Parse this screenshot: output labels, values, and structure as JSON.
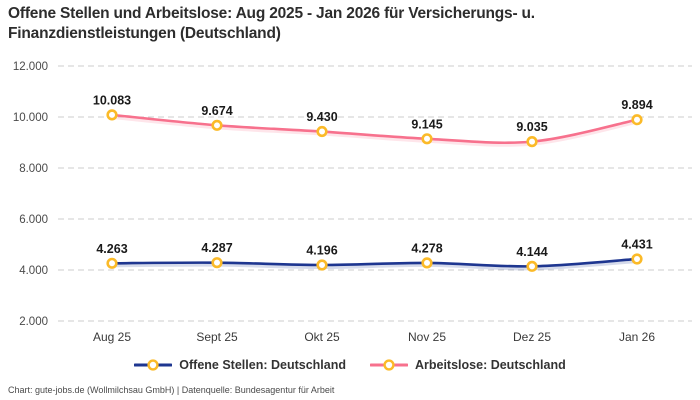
{
  "header": {
    "title_line1": "Offene Stellen und Arbeitslose: Aug 2025 - Jan 2026 für Versicherungs- u.",
    "title_line2": "Finanzdienstleistungen (Deutschland)"
  },
  "chart_data": {
    "type": "line",
    "title": "Offene Stellen und Arbeitslose: Aug 2025 - Jan 2026 für Versicherungs- u. Finanzdienstleistungen (Deutschland)",
    "categories": [
      "Aug 25",
      "Sept 25",
      "Okt 25",
      "Nov 25",
      "Dez 25",
      "Jan 26"
    ],
    "series": [
      {
        "name": "Offene Stellen: Deutschland",
        "color": "#1E3690",
        "values": [
          4263,
          4287,
          4196,
          4278,
          4144,
          4431
        ],
        "labels": [
          "4.263",
          "4.287",
          "4.196",
          "4.278",
          "4.144",
          "4.431"
        ]
      },
      {
        "name": "Arbeitslose: Deutschland",
        "color": "#F7718D",
        "values": [
          10083,
          9674,
          9430,
          9145,
          9035,
          9894
        ],
        "labels": [
          "10.083",
          "9.674",
          "9.430",
          "9.145",
          "9.035",
          "9.894"
        ]
      }
    ],
    "marker": {
      "fill": "#FFFFFF",
      "stroke": "#FBBA28"
    },
    "ylim": [
      2000,
      12000
    ],
    "yticks": [
      {
        "value": 12000,
        "label": "12.000"
      },
      {
        "value": 10000,
        "label": "10.000"
      },
      {
        "value": 8000,
        "label": "8.000"
      },
      {
        "value": 6000,
        "label": "6.000"
      },
      {
        "value": 4000,
        "label": "4.000"
      },
      {
        "value": 2000,
        "label": "2.000"
      }
    ],
    "grid": "horizontal dashed",
    "legend_position": "bottom"
  },
  "footer": {
    "credit": "Chart: gute-jobs.de (Wollmilchsau GmbH) | Datenquelle: Bundesagentur für Arbeit"
  }
}
